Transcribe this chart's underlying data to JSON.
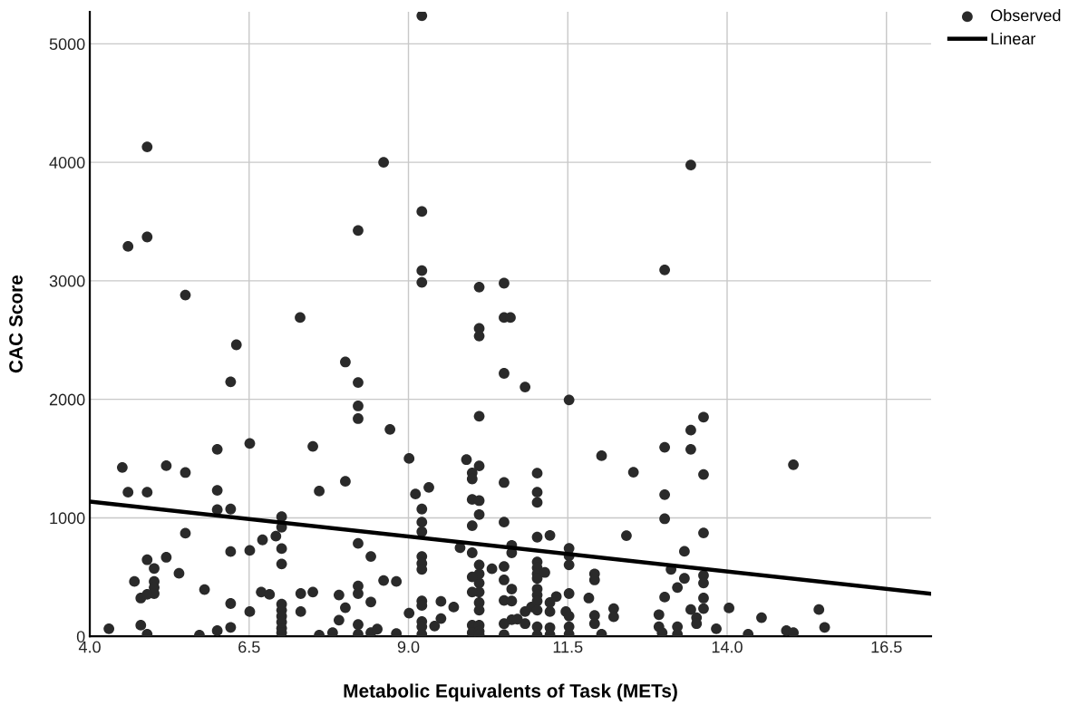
{
  "chart_data": {
    "type": "scatter",
    "xlabel": "Metabolic Equivalents of Task (METs)",
    "ylabel": "CAC Score",
    "xlim": [
      4.0,
      17.2
    ],
    "ylim": [
      0,
      5270
    ],
    "xticks": [
      {
        "value": 4.0,
        "label": "4.0"
      },
      {
        "value": 6.5,
        "label": "6.5"
      },
      {
        "value": 9.0,
        "label": "9.0"
      },
      {
        "value": 11.5,
        "label": "11.5"
      },
      {
        "value": 14.0,
        "label": "14.0"
      },
      {
        "value": 16.5,
        "label": "16.5"
      }
    ],
    "yticks": [
      0,
      1000,
      2000,
      3000,
      4000,
      5000
    ],
    "grid": true,
    "legend": "top right",
    "marker": "circle",
    "series": [
      {
        "name": "Observed",
        "color": "#2a2a2a",
        "x": [
          4.9,
          4.6,
          4.9,
          5.5,
          7.3,
          6.3,
          8.21,
          8.61,
          9.21,
          9.21,
          9.21,
          9.21,
          10.11,
          10.11,
          10.11,
          10.5,
          10.5,
          10.6,
          13.02,
          13.43,
          8.01,
          6.21,
          8.21,
          8.21,
          8.21,
          10.11,
          8.71,
          6.51,
          6.0,
          7.5,
          9.01,
          9.91,
          10.5,
          4.51,
          5.2,
          5.5,
          10.11,
          10.0,
          10.0,
          8.01,
          10.5,
          4.6,
          4.9,
          6.0,
          7.6,
          9.32,
          9.11,
          6.0,
          6.21,
          9.21,
          10.0,
          10.11,
          10.11,
          7.01,
          7.01,
          10.5,
          10.0,
          9.21,
          9.21,
          5.5,
          6.71,
          6.92,
          8.21,
          9.81,
          10.0,
          6.21,
          6.51,
          7.01,
          8.41,
          9.21,
          9.21,
          9.21,
          4.9,
          5.2,
          5.01,
          5.4,
          7.01,
          10.31,
          10.5,
          10.11,
          10.11,
          10.11,
          10.11,
          10.11,
          10.11,
          10.0,
          10.0,
          4.7,
          5.01,
          5.01,
          5.01,
          4.8,
          4.9,
          5.8,
          8.61,
          8.81,
          10.5,
          6.69,
          6.82,
          7.31,
          7.5,
          7.91,
          8.21,
          8.21,
          6.21,
          7.01,
          7.01,
          7.01,
          7.01,
          7.01,
          7.01,
          8.01,
          8.41,
          6.51,
          7.31,
          9.21,
          9.21,
          9.51,
          9.71,
          9.01,
          9.51,
          9.41,
          7.91,
          9.21,
          9.21,
          9.21,
          10.5,
          10.5,
          4.3,
          4.8,
          4.9,
          5.72,
          6.0,
          6.21,
          7.6,
          7.81,
          8.21,
          8.21,
          8.41,
          8.51,
          8.81,
          10.0,
          10.0,
          10.11,
          10.11,
          10.11,
          10.5,
          10.83,
          11.52,
          10.62,
          10.62,
          11.02,
          11.02,
          11.02,
          11.02,
          11.22,
          11.02,
          11.02,
          11.02,
          11.02,
          11.14,
          10.62,
          10.62,
          10.62,
          10.71,
          10.83,
          10.83,
          10.93,
          11.02,
          11.02,
          11.02,
          11.02,
          11.02,
          11.02,
          11.22,
          11.22,
          11.32,
          11.22,
          11.22,
          11.52,
          11.52,
          11.52,
          11.52,
          11.47,
          11.52,
          11.52,
          11.52,
          11.83,
          11.92,
          11.92,
          11.92,
          11.92,
          12.03,
          12.03,
          12.22,
          12.22,
          12.42,
          12.53,
          13.02,
          13.02,
          13.02,
          13.12,
          13.02,
          12.93,
          12.93,
          12.98,
          13.22,
          13.22,
          13.22,
          13.33,
          13.33,
          13.43,
          13.43,
          13.63,
          13.63,
          13.63,
          13.63,
          13.63,
          13.63,
          13.63,
          13.43,
          13.52,
          13.52,
          13.83,
          14.03,
          14.33,
          14.54,
          15.04,
          14.93,
          15.04,
          15.44,
          15.53
        ],
        "values": [
          4130,
          3290,
          3370,
          2880,
          2690,
          2460,
          3425,
          4000,
          5237,
          3585,
          3086,
          2987,
          2947,
          2598,
          2534,
          2980,
          2690,
          2690,
          3092,
          3977,
          2315,
          2148,
          2142,
          1944,
          1837,
          1857,
          1746,
          1628,
          1578,
          1603,
          1501,
          1491,
          2219,
          1425,
          1440,
          1382,
          1438,
          1379,
          1328,
          1308,
          1298,
          1216,
          1216,
          1232,
          1226,
          1257,
          1201,
          1069,
          1074,
          1074,
          1155,
          1145,
          1028,
          1010,
          921,
          964,
          934,
          964,
          883,
          870,
          814,
          845,
          784,
          748,
          705,
          715,
          725,
          740,
          674,
          674,
          616,
          565,
          646,
          667,
          573,
          532,
          611,
          570,
          590,
          603,
          527,
          450,
          374,
          285,
          221,
          501,
          374,
          463,
          463,
          412,
          361,
          323,
          354,
          395,
          471,
          463,
          476,
          374,
          354,
          361,
          374,
          349,
          425,
          361,
          277,
          272,
          221,
          170,
          120,
          69,
          31,
          242,
          290,
          209,
          209,
          298,
          260,
          295,
          247,
          196,
          150,
          87,
          137,
          125,
          81,
          18,
          303,
          107,
          64,
          94,
          18,
          10,
          48,
          76,
          10,
          31,
          99,
          18,
          31,
          61,
          23,
          94,
          31,
          94,
          43,
          13,
          13,
          2104,
          1995,
          768,
          705,
          1377,
          1216,
          1130,
          837,
          852,
          628,
          578,
          527,
          489,
          539,
          399,
          298,
          140,
          145,
          209,
          107,
          247,
          399,
          349,
          298,
          221,
          81,
          10,
          285,
          209,
          336,
          74,
          13,
          743,
          679,
          603,
          361,
          209,
          171,
          81,
          18,
          323,
          527,
          476,
          176,
          107,
          1524,
          18,
          234,
          165,
          850,
          1385,
          1595,
          1196,
          992,
          565,
          331,
          183,
          81,
          31,
          412,
          81,
          18,
          717,
          489,
          1740,
          1578,
          1850,
          1366,
          873,
          514,
          450,
          323,
          234,
          226,
          158,
          107,
          64,
          239,
          18,
          158,
          1448,
          48,
          31,
          226,
          76
        ]
      },
      {
        "name": "Linear",
        "type": "line",
        "color": "#000000",
        "marker": "none",
        "x": [
          4.0,
          17.2
        ],
        "values": [
          1137,
          359
        ]
      }
    ]
  }
}
